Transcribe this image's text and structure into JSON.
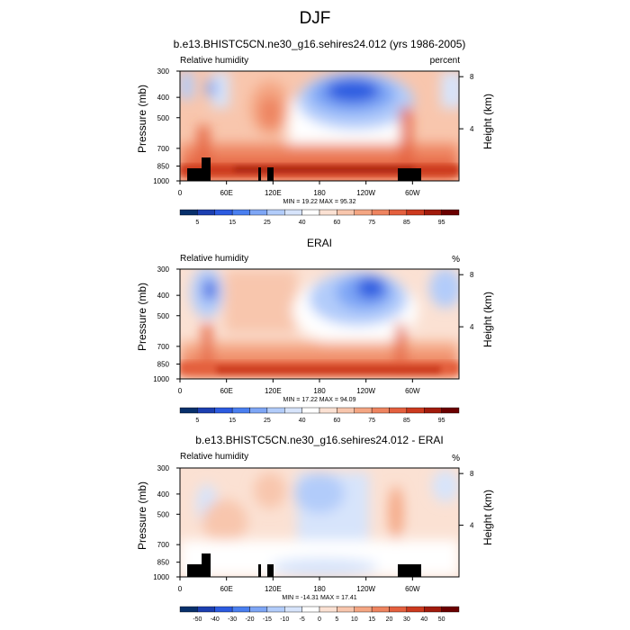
{
  "figure": {
    "title": "DJF"
  },
  "colorbars": {
    "absolute": {
      "labels": [
        "5",
        "15",
        "25",
        "40",
        "60",
        "75",
        "85",
        "95"
      ],
      "colors": [
        "#08306b",
        "#1c3fb0",
        "#2c5be0",
        "#4a7ff0",
        "#7ea6f5",
        "#b2ccfa",
        "#d7e4fb",
        "#ffffff",
        "#fbe1d3",
        "#f8c6ad",
        "#f4a683",
        "#ee8460",
        "#e4603e",
        "#cc3a1f",
        "#a11b0c",
        "#6b0000"
      ]
    },
    "difference": {
      "labels": [
        "-50",
        "-40",
        "-30",
        "-20",
        "-15",
        "-10",
        "-5",
        "0",
        "5",
        "10",
        "15",
        "20",
        "30",
        "40",
        "50"
      ],
      "colors": [
        "#08306b",
        "#1c3fb0",
        "#2c5be0",
        "#4a7ff0",
        "#7ea6f5",
        "#b2ccfa",
        "#d7e4fb",
        "#ffffff",
        "#fbe1d3",
        "#f8c6ad",
        "#f4a683",
        "#ee8460",
        "#e4603e",
        "#cc3a1f",
        "#a11b0c",
        "#6b0000"
      ]
    }
  },
  "chart_data": [
    {
      "type": "heatmap",
      "title": "b.e13.BHISTC5CN.ne30_g16.sehires24.012 (yrs 1986-2005)",
      "variable": "Relative humidity",
      "units": "percent",
      "ylabel": "Pressure (mb)",
      "ylabel_right": "Height (km)",
      "x_tick_labels": [
        "0",
        "60E",
        "120E",
        "180",
        "120W",
        "60W"
      ],
      "y_tick_labels": [
        "300",
        "400",
        "500",
        "700",
        "850",
        "1000"
      ],
      "y_right_tick_labels": [
        "8",
        "4"
      ],
      "stats": "MIN = 19.22  MAX = 95.32",
      "colorbar": "absolute"
    },
    {
      "type": "heatmap",
      "title": "ERAI",
      "variable": "Relative humidity",
      "units": "%",
      "ylabel": "Pressure (mb)",
      "ylabel_right": "Height (km)",
      "x_tick_labels": [
        "0",
        "60E",
        "120E",
        "180",
        "120W",
        "60W"
      ],
      "y_tick_labels": [
        "300",
        "400",
        "500",
        "700",
        "850",
        "1000"
      ],
      "y_right_tick_labels": [
        "8",
        "4"
      ],
      "stats": "MIN = 17.22  MAX = 94.09",
      "colorbar": "absolute"
    },
    {
      "type": "heatmap",
      "title": "b.e13.BHISTC5CN.ne30_g16.sehires24.012 - ERAI",
      "variable": "Relative humidity",
      "units": "%",
      "ylabel": "Pressure (mb)",
      "ylabel_right": "Height (km)",
      "x_tick_labels": [
        "0",
        "60E",
        "120E",
        "180",
        "120W",
        "60W"
      ],
      "y_tick_labels": [
        "300",
        "400",
        "500",
        "700",
        "850",
        "1000"
      ],
      "y_right_tick_labels": [
        "8",
        "4"
      ],
      "stats": "MIN = -14.31  MAX = 17.41",
      "colorbar": "difference"
    }
  ]
}
